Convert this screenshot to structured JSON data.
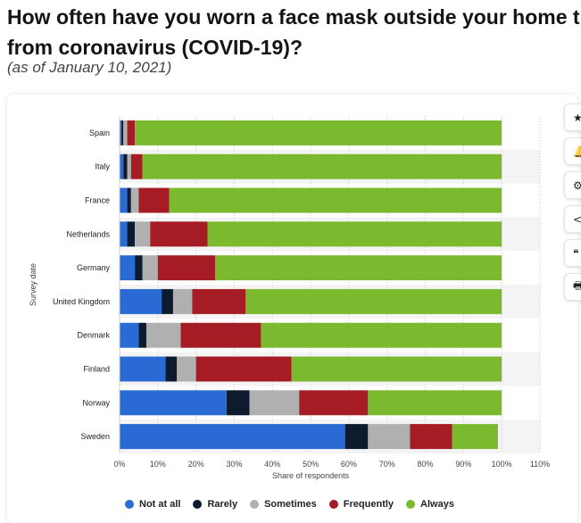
{
  "header": {
    "title_line1": "How often have you worn a face mask outside your home t",
    "title_line2": "from coronavirus (COVID-19)?",
    "subtitle": "(as of January 10, 2021)"
  },
  "toolbar": {
    "icons": [
      "star-icon",
      "bell-icon",
      "gear-icon",
      "share-icon",
      "quote-icon",
      "print-icon"
    ],
    "glyphs": [
      "★",
      "🔔",
      "⚙",
      "<",
      "❝",
      "🖶"
    ]
  },
  "colors": {
    "Not at all": "#2a6ad4",
    "Rarely": "#0d1b2e",
    "Sometimes": "#b0b0b0",
    "Frequently": "#a51c24",
    "Always": "#7bb92f"
  },
  "chart_data": {
    "type": "bar",
    "orientation": "horizontal",
    "stacked": true,
    "categories": [
      "Spain",
      "Italy",
      "France",
      "Netherlands",
      "Germany",
      "United Kingdom",
      "Denmark",
      "Finland",
      "Norway",
      "Sweden"
    ],
    "series": [
      {
        "name": "Not at all",
        "values": [
          0.5,
          1,
          2,
          2,
          4,
          11,
          5,
          12,
          28,
          59
        ]
      },
      {
        "name": "Rarely",
        "values": [
          0.5,
          1,
          1,
          2,
          2,
          3,
          2,
          3,
          6,
          6
        ]
      },
      {
        "name": "Sometimes",
        "values": [
          1,
          1,
          2,
          4,
          4,
          5,
          9,
          5,
          13,
          11
        ]
      },
      {
        "name": "Frequently",
        "values": [
          2,
          3,
          8,
          15,
          15,
          14,
          21,
          25,
          18,
          11
        ]
      },
      {
        "name": "Always",
        "values": [
          96,
          94,
          87,
          77,
          75,
          67,
          63,
          55,
          35,
          12
        ]
      }
    ],
    "xlim": [
      0,
      110
    ],
    "xticks": [
      "0%",
      "10%",
      "20%",
      "30%",
      "40%",
      "50%",
      "60%",
      "70%",
      "80%",
      "90%",
      "100%",
      "110%"
    ],
    "xlabel": "Share of respondents",
    "ylabel": "Survey date",
    "legend_position": "bottom",
    "grid": true
  }
}
